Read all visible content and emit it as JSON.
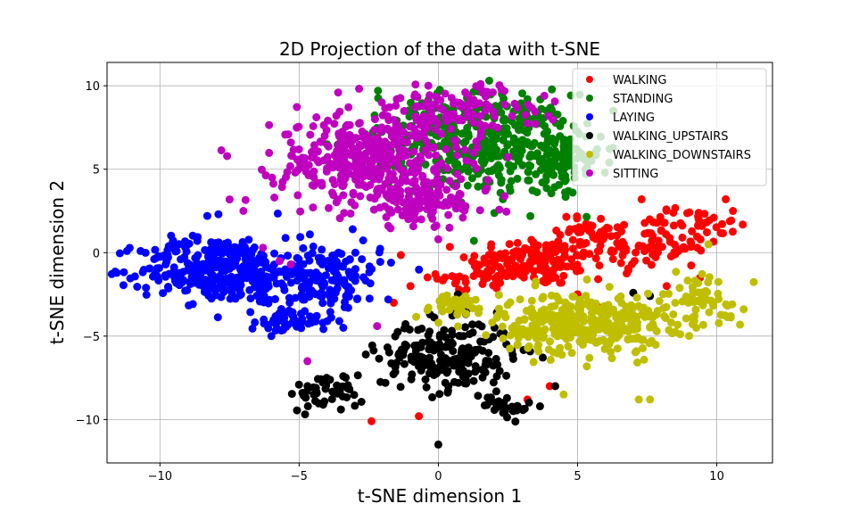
{
  "chart_data": {
    "type": "scatter",
    "title": "2D Projection of the data with t-SNE",
    "xlabel": "t-SNE dimension 1",
    "ylabel": "t-SNE dimension 2",
    "xlim": [
      -11.9,
      12.0
    ],
    "ylim": [
      -12.6,
      11.4
    ],
    "xticks": [
      -10,
      -5,
      0,
      5,
      10
    ],
    "yticks": [
      -10,
      -5,
      0,
      5,
      10
    ],
    "xtick_labels": [
      "−10",
      "−5",
      "0",
      "5",
      "10"
    ],
    "ytick_labels": [
      "−10",
      "−5",
      "0",
      "5",
      "10"
    ],
    "grid": true,
    "legend_position": "top-right",
    "series": [
      {
        "name": "WALKING",
        "color": "#ff0000",
        "clusters": [
          {
            "cx": 3.5,
            "cy": -0.5,
            "sx": 1.6,
            "sy": 1.0,
            "n": 150
          },
          {
            "cx": 7.5,
            "cy": 0.5,
            "sx": 1.5,
            "sy": 1.2,
            "n": 90
          },
          {
            "cx": 9.5,
            "cy": 1.8,
            "sx": 0.8,
            "sy": 0.8,
            "n": 30
          },
          {
            "cx": 1.5,
            "cy": -1.5,
            "sx": 1.0,
            "sy": 0.6,
            "n": 40
          },
          {
            "cx": 5.5,
            "cy": 1.5,
            "sx": 0.8,
            "sy": 0.5,
            "n": 30
          }
        ],
        "points": [
          [
            -2.4,
            -10.1
          ],
          [
            -0.7,
            -9.8
          ],
          [
            3.2,
            -8.8
          ],
          [
            4.0,
            -8.0
          ],
          [
            -1.6,
            -3.0
          ],
          [
            7.3,
            3.2
          ],
          [
            9.4,
            -1.5
          ],
          [
            -1.0,
            -2.0
          ],
          [
            5.0,
            -2.5
          ],
          [
            8.2,
            -2.0
          ]
        ]
      },
      {
        "name": "STANDING",
        "color": "#008000",
        "clusters": [
          {
            "cx": 2.0,
            "cy": 6.5,
            "sx": 1.9,
            "sy": 2.0,
            "n": 320
          },
          {
            "cx": 4.3,
            "cy": 5.3,
            "sx": 1.0,
            "sy": 1.4,
            "n": 80
          },
          {
            "cx": -1.0,
            "cy": 7.0,
            "sx": 1.5,
            "sy": 1.5,
            "n": 60
          }
        ],
        "points": [
          [
            5.5,
            5.5
          ],
          [
            5.7,
            6.2
          ],
          [
            5.3,
            4.7
          ],
          [
            3.2,
            9.2
          ],
          [
            -4.0,
            6.5
          ]
        ]
      },
      {
        "name": "LAYING",
        "color": "#0000ff",
        "clusters": [
          {
            "cx": -8.0,
            "cy": -1.0,
            "sx": 1.8,
            "sy": 1.3,
            "n": 320
          },
          {
            "cx": -4.3,
            "cy": -1.5,
            "sx": 1.5,
            "sy": 1.5,
            "n": 200
          },
          {
            "cx": -5.5,
            "cy": -4.2,
            "sx": 0.8,
            "sy": 0.4,
            "n": 40
          }
        ],
        "points": [
          [
            -10.5,
            -2.1
          ],
          [
            -8.3,
            2.2
          ],
          [
            -7.9,
            2.3
          ],
          [
            -1.7,
            -0.6
          ],
          [
            -1.8,
            -2.8
          ],
          [
            -6.0,
            -5.0
          ]
        ]
      },
      {
        "name": "WALKING_UPSTAIRS",
        "color": "#000000",
        "clusters": [
          {
            "cx": 0.3,
            "cy": -6.2,
            "sx": 1.6,
            "sy": 1.4,
            "n": 220
          },
          {
            "cx": -4.0,
            "cy": -8.3,
            "sx": 0.9,
            "sy": 0.7,
            "n": 45
          },
          {
            "cx": 2.5,
            "cy": -9.2,
            "sx": 0.6,
            "sy": 0.5,
            "n": 30
          }
        ],
        "points": [
          [
            0.0,
            -11.5
          ],
          [
            -1.9,
            -7.8
          ],
          [
            -3.5,
            -9.4
          ],
          [
            4.2,
            -8.0
          ],
          [
            7.6,
            -2.6
          ],
          [
            7.0,
            -2.4
          ],
          [
            0.7,
            -2.5
          ],
          [
            -0.3,
            -3.7
          ]
        ]
      },
      {
        "name": "WALKING_DOWNSTAIRS",
        "color": "#bfbf00",
        "clusters": [
          {
            "cx": 5.2,
            "cy": -4.2,
            "sx": 2.0,
            "sy": 1.2,
            "n": 350
          },
          {
            "cx": 9.5,
            "cy": -2.8,
            "sx": 1.0,
            "sy": 1.2,
            "n": 60
          },
          {
            "cx": 0.5,
            "cy": -3.2,
            "sx": 1.0,
            "sy": 0.5,
            "n": 40
          }
        ],
        "points": [
          [
            7.6,
            -8.8
          ],
          [
            7.2,
            -8.8
          ],
          [
            4.5,
            -8.5
          ],
          [
            10.5,
            -3.8
          ],
          [
            9.7,
            0.5
          ]
        ]
      },
      {
        "name": "SITTING",
        "color": "#bf00bf",
        "clusters": [
          {
            "cx": -2.5,
            "cy": 5.5,
            "sx": 2.2,
            "sy": 1.8,
            "n": 380
          },
          {
            "cx": 0.5,
            "cy": 8.5,
            "sx": 2.2,
            "sy": 1.0,
            "n": 120
          },
          {
            "cx": -0.5,
            "cy": 3.0,
            "sx": 1.6,
            "sy": 1.0,
            "n": 120
          }
        ],
        "points": [
          [
            -6.3,
            0.3
          ],
          [
            -5.7,
            -0.5
          ],
          [
            -5.3,
            -0.7
          ],
          [
            -4.7,
            -6.5
          ],
          [
            -2.2,
            -4.4
          ],
          [
            -7.0,
            2.5
          ],
          [
            0.0,
            0.8
          ],
          [
            -3.6,
            9.6
          ]
        ]
      }
    ]
  }
}
